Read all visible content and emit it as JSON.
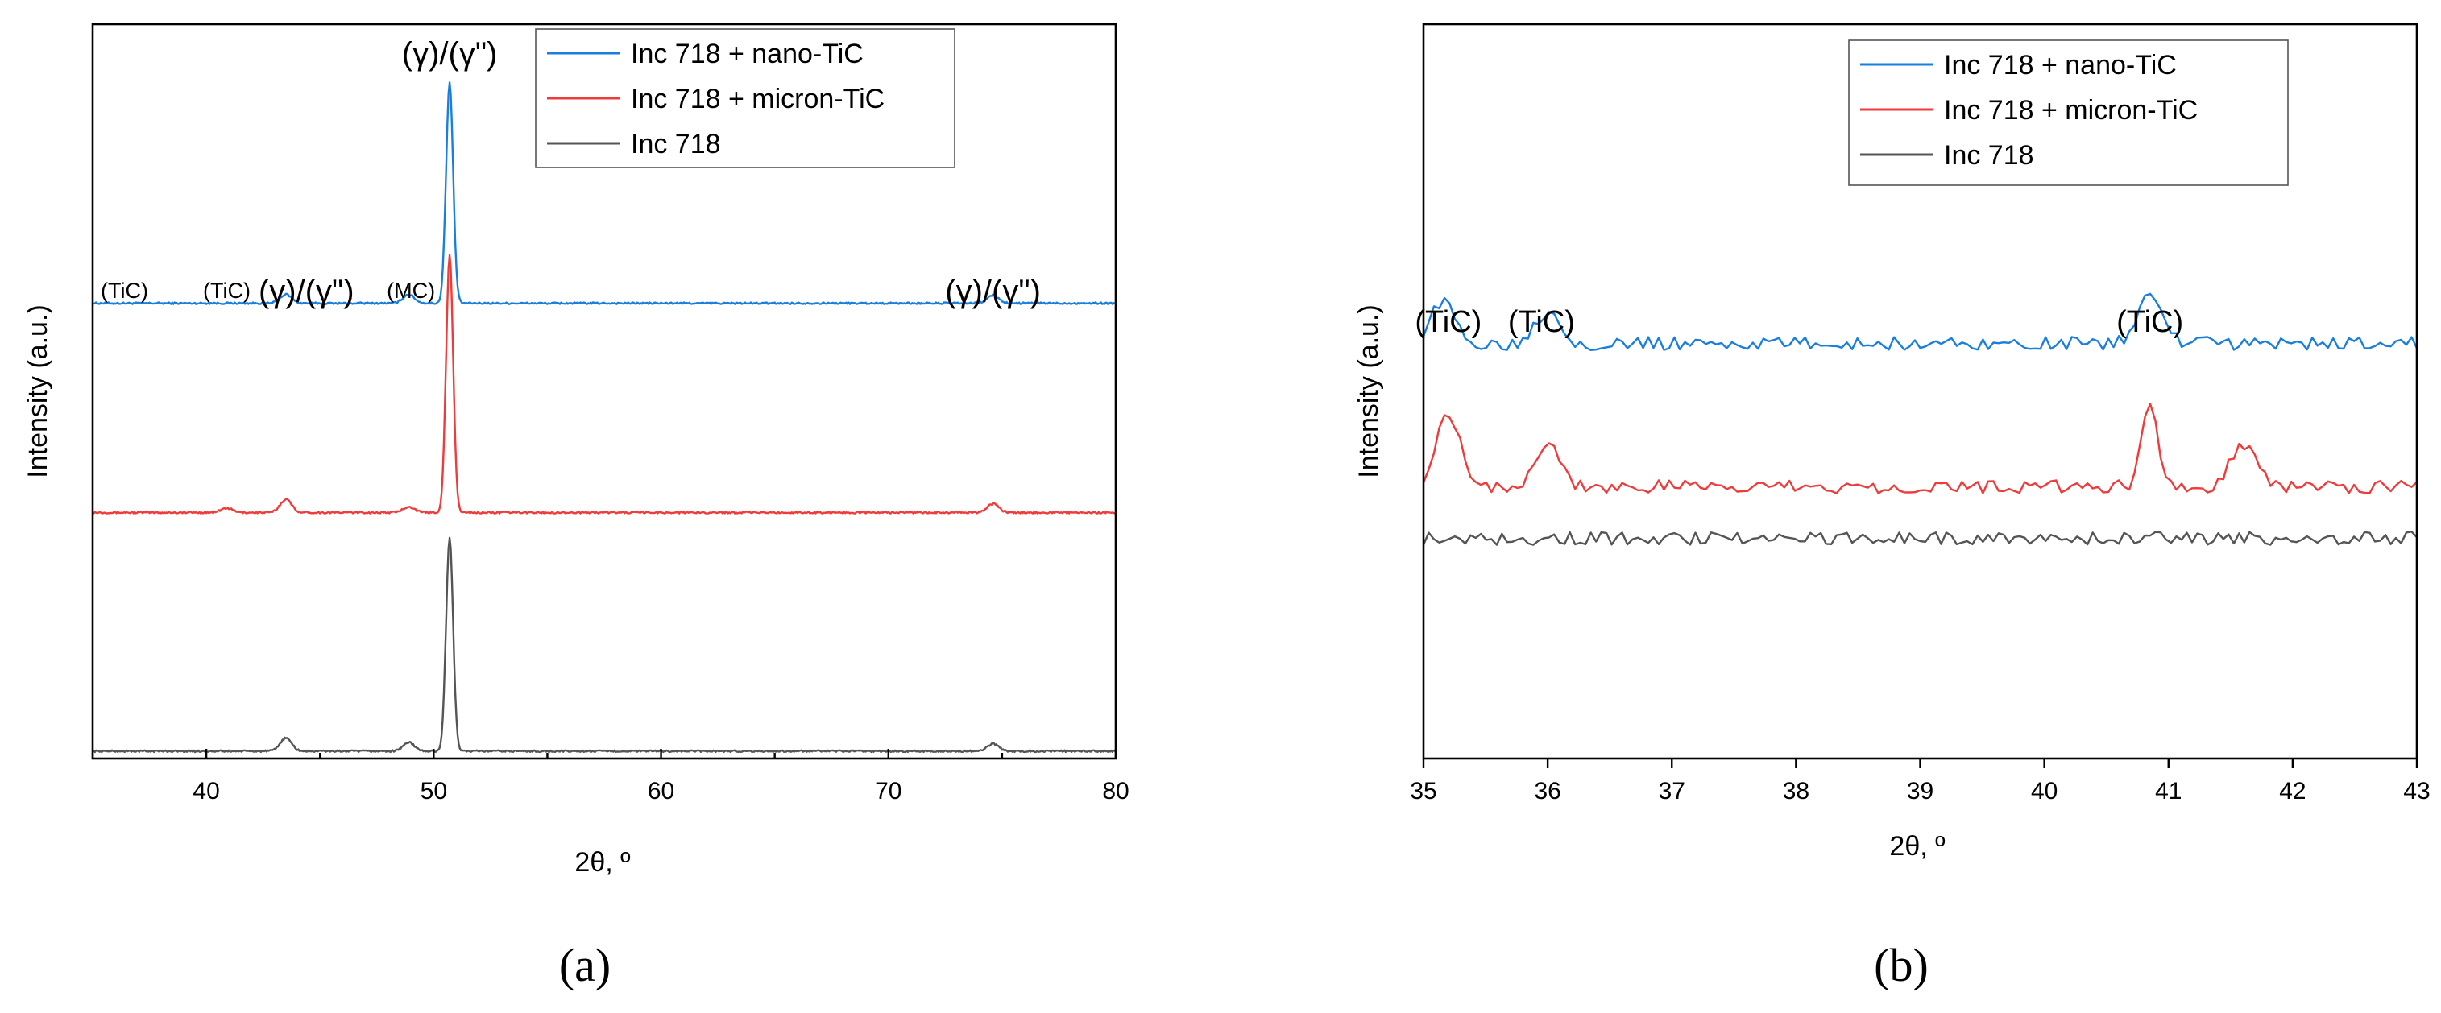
{
  "chart_data": [
    {
      "panel_label": "(a)",
      "type": "line",
      "xlabel": "2θ, º",
      "ylabel": "Intensity (a.u.)",
      "xlim": [
        35,
        80
      ],
      "xticks": [
        40,
        50,
        60,
        70,
        80
      ],
      "y_ticks_labeled": false,
      "legend": {
        "position": "top-right",
        "entries": [
          "Inc 718 + nano-TiC",
          "Inc 718 + micron-TiC",
          "Inc 718"
        ]
      },
      "series": [
        {
          "name": "Inc 718 + nano-TiC",
          "color": "#1a7fdc",
          "baseline": 0.62,
          "peaks": [
            {
              "x": 43.5,
              "height": 0.012
            },
            {
              "x": 48.9,
              "height": 0.012
            },
            {
              "x": 50.7,
              "height": 0.3
            },
            {
              "x": 74.6,
              "height": 0.011
            }
          ]
        },
        {
          "name": "Inc 718 + micron-TiC",
          "color": "#ee3b3b",
          "baseline": 0.335,
          "peaks": [
            {
              "x": 40.9,
              "height": 0.006
            },
            {
              "x": 43.5,
              "height": 0.018
            },
            {
              "x": 48.9,
              "height": 0.008
            },
            {
              "x": 50.7,
              "height": 0.35
            },
            {
              "x": 74.6,
              "height": 0.012
            }
          ]
        },
        {
          "name": "Inc 718",
          "color": "#555555",
          "baseline": 0.01,
          "peaks": [
            {
              "x": 43.5,
              "height": 0.018
            },
            {
              "x": 48.9,
              "height": 0.012
            },
            {
              "x": 50.7,
              "height": 0.29
            },
            {
              "x": 74.6,
              "height": 0.01
            }
          ]
        }
      ],
      "annotations": [
        {
          "text": "(TiC)",
          "x": 36.4,
          "size": "small"
        },
        {
          "text": "(TiC)",
          "x": 40.9,
          "size": "small"
        },
        {
          "text": "(γ)/(γ\")",
          "x": 44.4,
          "size": "large"
        },
        {
          "text": "(MC)",
          "x": 49.0,
          "size": "small"
        },
        {
          "text": "(γ)/(γ\")",
          "x": 50.7,
          "size": "large"
        },
        {
          "text": "(γ)/(γ\")",
          "x": 74.6,
          "size": "large"
        }
      ]
    },
    {
      "panel_label": "(b)",
      "type": "line",
      "xlabel": "2θ, º",
      "ylabel": "Intensity (a.u.)",
      "xlim": [
        35,
        43
      ],
      "xticks": [
        35,
        36,
        37,
        38,
        39,
        40,
        41,
        42,
        43
      ],
      "y_ticks_labeled": false,
      "legend": {
        "position": "top-right",
        "entries": [
          "Inc 718 + nano-TiC",
          "Inc 718 + micron-TiC",
          "Inc 718"
        ]
      },
      "series": [
        {
          "name": "Inc 718 + nano-TiC",
          "color": "#1a7fdc",
          "baseline": 0.565,
          "peaks": [
            {
              "x": 35.15,
              "height": 0.055
            },
            {
              "x": 36.0,
              "height": 0.045
            },
            {
              "x": 40.85,
              "height": 0.065
            }
          ]
        },
        {
          "name": "Inc 718 + micron-TiC",
          "color": "#ee3b3b",
          "baseline": 0.37,
          "peaks": [
            {
              "x": 35.2,
              "height": 0.1
            },
            {
              "x": 36.0,
              "height": 0.06
            },
            {
              "x": 40.85,
              "height": 0.11
            },
            {
              "x": 41.6,
              "height": 0.06
            }
          ]
        },
        {
          "name": "Inc 718",
          "color": "#555555",
          "baseline": 0.3,
          "peaks": []
        }
      ],
      "annotations": [
        {
          "text": "(TiC)",
          "x": 35.2,
          "size": "large"
        },
        {
          "text": "(TiC)",
          "x": 35.95,
          "size": "large"
        },
        {
          "text": "(TiC)",
          "x": 40.85,
          "size": "large"
        }
      ]
    }
  ]
}
